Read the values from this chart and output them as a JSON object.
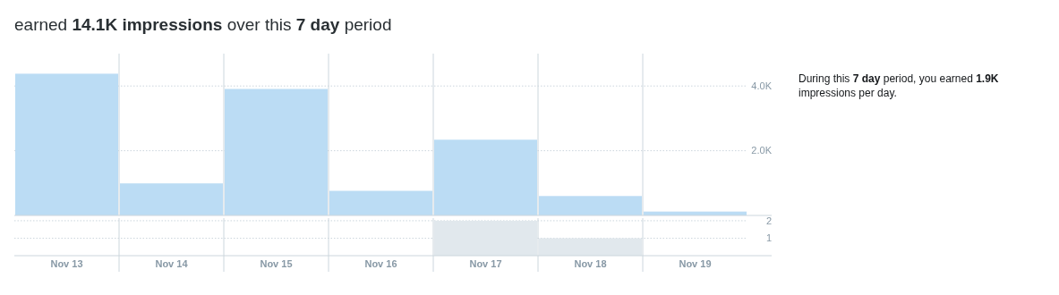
{
  "chart_data": [
    {
      "type": "bar",
      "title": "earned 14.1K impressions over this 7 day period",
      "categories": [
        null,
        null,
        null,
        null,
        null,
        null,
        null
      ],
      "values": [
        4380,
        990,
        3910,
        760,
        2340,
        600,
        120
      ],
      "color": "#bbdcf4",
      "ylim": [
        0,
        5000
      ],
      "yticks": [
        {
          "value": 2000,
          "label": "2.0K"
        },
        {
          "value": 4000,
          "label": "4.0K"
        }
      ],
      "grid": "y",
      "tick_labels": "y",
      "annotations": [
        "During this 7 day period, you earned 1.9K impressions per day."
      ]
    },
    {
      "type": "bar",
      "categories": [
        "Nov 13",
        "Nov 14",
        "Nov 15",
        "Nov 16",
        "Nov 17",
        "Nov 18",
        "Nov 19"
      ],
      "values": [
        0,
        0,
        0,
        0,
        2,
        1,
        0
      ],
      "color": "#e1e8ed",
      "ylim": [
        0,
        2.15
      ],
      "yticks": [
        1,
        2
      ],
      "grid": "y"
    }
  ]
}
